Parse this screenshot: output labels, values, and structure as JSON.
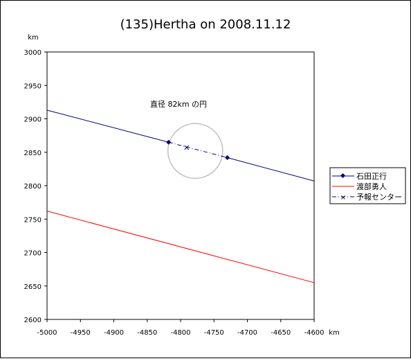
{
  "chart_data": {
    "type": "line",
    "title": "(135)Hertha on 2008.11.12",
    "xunit": "km",
    "yunit": "km",
    "xlim": [
      -5000,
      -4600
    ],
    "ylim": [
      2600,
      3000
    ],
    "x_ticks": [
      -5000,
      -4950,
      -4900,
      -4850,
      -4800,
      -4750,
      -4700,
      -4650,
      -4600
    ],
    "y_ticks": [
      2600,
      2650,
      2700,
      2750,
      2800,
      2850,
      2900,
      2950,
      3000
    ],
    "grid": false,
    "legend_position": "right",
    "annotation": "直径 82km の円",
    "circle": {
      "center": [
        -4778,
        2852
      ],
      "diameter_km": 82
    },
    "series": [
      {
        "name": "石田正行",
        "color": "#000080",
        "line": [
          [
            -5000,
            2913
          ],
          [
            -4600,
            2807
          ]
        ],
        "points": [
          [
            -4818,
            2865
          ],
          [
            -4730,
            2842
          ]
        ]
      },
      {
        "name": "渡部勇人",
        "color": "#ff0000",
        "line": [
          [
            -5000,
            2762
          ],
          [
            -4600,
            2655
          ]
        ]
      },
      {
        "name": "予報センター",
        "color": "#000080",
        "style": "dash-dot",
        "segment": [
          [
            -4818,
            2865
          ],
          [
            -4730,
            2842
          ]
        ],
        "points": [
          [
            -4791,
            2857
          ]
        ]
      }
    ]
  }
}
